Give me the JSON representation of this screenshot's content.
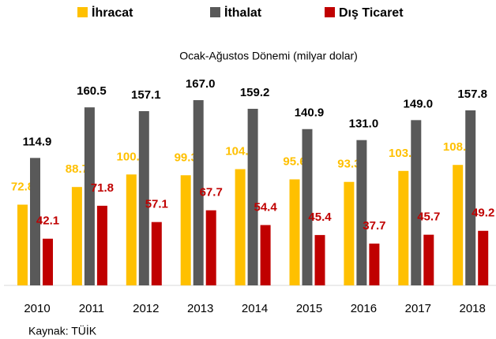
{
  "chart_data": {
    "type": "bar",
    "subtitle": "Ocak-Ağustos Dönemi (milyar dolar)",
    "source": "Kaynak: TÜİK",
    "categories": [
      "2010",
      "2011",
      "2012",
      "2013",
      "2014",
      "2015",
      "2016",
      "2017",
      "2018"
    ],
    "series": [
      {
        "name": "İhracat",
        "color": "#FFC000",
        "label_color": "#FFC000",
        "values": [
          72.8,
          88.7,
          100.0,
          99.3,
          104.8,
          95.6,
          93.3,
          103.2,
          108.6
        ],
        "value_labels": [
          "72.8",
          "88.7",
          "100.0",
          "99.3",
          "104.8",
          "95.6",
          "93.3",
          "103.2",
          "108.6"
        ]
      },
      {
        "name": "İthalat",
        "color": "#595959",
        "label_color": "#000000",
        "values": [
          114.9,
          160.5,
          157.1,
          167.0,
          159.2,
          140.9,
          131.0,
          149.0,
          157.8
        ],
        "value_labels": [
          "114.9",
          "160.5",
          "157.1",
          "167.0",
          "159.2",
          "140.9",
          "131.0",
          "149.0",
          "157.8"
        ]
      },
      {
        "name": "Dış Ticaret",
        "color": "#C00000",
        "label_color": "#C00000",
        "values": [
          42.1,
          71.8,
          57.1,
          67.7,
          54.4,
          45.4,
          37.7,
          45.7,
          49.2
        ],
        "value_labels": [
          "42.1",
          "71.8",
          "57.1",
          "67.7",
          "54.4",
          "45.4",
          "37.7",
          "45.7",
          "49.2"
        ]
      }
    ],
    "legend": "top"
  }
}
